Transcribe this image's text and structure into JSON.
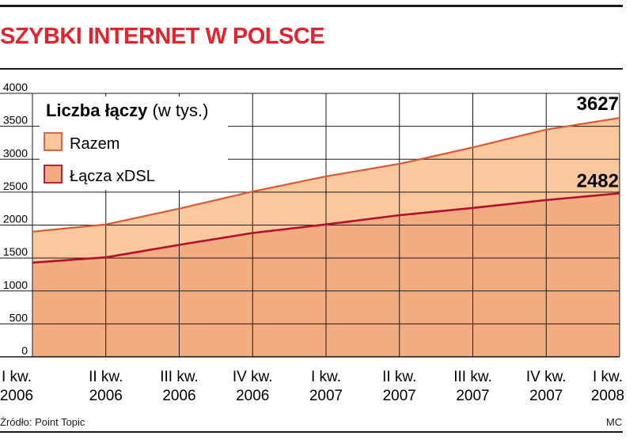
{
  "title": "SZYBKI INTERNET W POLSCE",
  "source": "Źródło: Point Topic",
  "credit": "MC",
  "colors": {
    "title": "#e3232e",
    "total_fill": "#fbc79c",
    "total_line": "#d85a33",
    "dsl_fill": "#f3ac80",
    "dsl_line": "#b3102d",
    "grid": "#1a1a1a"
  },
  "chart_data": {
    "type": "area",
    "title": "Liczba łączy",
    "subtitle": "(w tys.)",
    "x": [
      [
        "I kw.",
        "2006"
      ],
      [
        "II kw.",
        "2006"
      ],
      [
        "III kw.",
        "2006"
      ],
      [
        "IV kw.",
        "2006"
      ],
      [
        "I kw.",
        "2007"
      ],
      [
        "II kw.",
        "2007"
      ],
      [
        "III kw.",
        "2007"
      ],
      [
        "IV kw.",
        "2007"
      ],
      [
        "I kw.",
        "2008"
      ]
    ],
    "series": [
      {
        "name": "Razem",
        "values": [
          1900,
          2010,
          2250,
          2510,
          2740,
          2930,
          3180,
          3450,
          3627
        ]
      },
      {
        "name": "Łącza xDSL",
        "values": [
          1430,
          1510,
          1700,
          1880,
          2010,
          2150,
          2260,
          2380,
          2482
        ]
      }
    ],
    "end_labels": [
      "3627",
      "2482"
    ],
    "yticks": [
      "0",
      "500",
      "1000",
      "1500",
      "2000",
      "2500",
      "3000",
      "3500",
      "4000"
    ],
    "ylim": [
      0,
      4000
    ],
    "legend_position": "top-left",
    "grid": true
  }
}
